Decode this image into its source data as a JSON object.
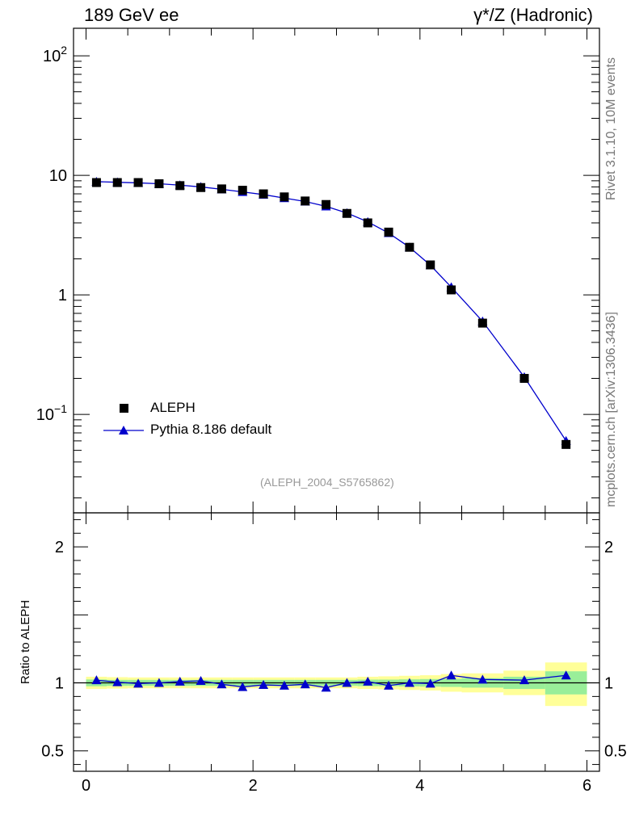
{
  "header": {
    "left_title": "189 GeV ee",
    "right_title": "γ*/Z (Hadronic)"
  },
  "side_labels": {
    "rivet": "Rivet 3.1.10,  10M events",
    "mcplots": "mcplots.cern.ch [arXiv:1306.3436]"
  },
  "analysis_label": "(ALEPH_2004_S5765862)",
  "legend": {
    "data_label": "ALEPH",
    "mc_label": "Pythia 8.186 default"
  },
  "colors": {
    "data": "#000000",
    "mc": "#0000cc",
    "band_inner": "#99ee99",
    "band_outer": "#ffff99"
  },
  "chart_data": [
    {
      "type": "scatter",
      "yscale": "log",
      "ylim": [
        0.015,
        170
      ],
      "xlim": [
        -0.15,
        6.15
      ],
      "ytick_labels": [
        "10^-1",
        "1",
        "10",
        "10^2"
      ],
      "ytick_values": [
        0.1,
        1,
        10,
        100
      ],
      "series": [
        {
          "name": "ALEPH",
          "marker": "square",
          "x": [
            0.125,
            0.375,
            0.625,
            0.875,
            1.125,
            1.375,
            1.625,
            1.875,
            2.125,
            2.375,
            2.625,
            2.875,
            3.125,
            3.375,
            3.625,
            3.875,
            4.125,
            4.375,
            4.75,
            5.25,
            5.75
          ],
          "y": [
            8.7,
            8.7,
            8.7,
            8.5,
            8.2,
            7.9,
            7.7,
            7.5,
            7.0,
            6.6,
            6.1,
            5.7,
            4.8,
            4.0,
            3.35,
            2.5,
            1.78,
            1.1,
            0.58,
            0.2,
            0.056
          ]
        },
        {
          "name": "Pythia 8.186 default",
          "marker": "triangle",
          "x": [
            0.125,
            0.375,
            0.625,
            0.875,
            1.125,
            1.375,
            1.625,
            1.875,
            2.125,
            2.375,
            2.625,
            2.875,
            3.125,
            3.375,
            3.625,
            3.875,
            4.125,
            4.375,
            4.75,
            5.25,
            5.75
          ],
          "y": [
            8.85,
            8.75,
            8.65,
            8.5,
            8.28,
            8.0,
            7.64,
            7.27,
            6.9,
            6.45,
            6.04,
            5.5,
            4.84,
            4.08,
            3.29,
            2.5,
            1.77,
            1.16,
            0.6,
            0.205,
            0.06
          ]
        }
      ]
    },
    {
      "type": "scatter",
      "ylabel": "Ratio to ALEPH",
      "ylim": [
        0.35,
        2.25
      ],
      "xlim": [
        -0.15,
        6.15
      ],
      "xtick_labels": [
        "0",
        "2",
        "4",
        "6"
      ],
      "ytick_labels": [
        "0.5",
        "1",
        "2"
      ],
      "ytick_values": [
        0.5,
        1,
        2
      ],
      "bands": [
        {
          "x0": 0.0,
          "x1": 0.25,
          "inner": [
            0.975,
            1.025
          ],
          "outer": [
            0.955,
            1.045
          ]
        },
        {
          "x0": 0.25,
          "x1": 0.5,
          "inner": [
            0.978,
            1.022
          ],
          "outer": [
            0.958,
            1.042
          ]
        },
        {
          "x0": 0.5,
          "x1": 0.75,
          "inner": [
            0.978,
            1.022
          ],
          "outer": [
            0.96,
            1.04
          ]
        },
        {
          "x0": 0.75,
          "x1": 1.0,
          "inner": [
            0.978,
            1.022
          ],
          "outer": [
            0.96,
            1.04
          ]
        },
        {
          "x0": 1.0,
          "x1": 1.25,
          "inner": [
            0.978,
            1.022
          ],
          "outer": [
            0.96,
            1.04
          ]
        },
        {
          "x0": 1.25,
          "x1": 1.5,
          "inner": [
            0.978,
            1.022
          ],
          "outer": [
            0.96,
            1.04
          ]
        },
        {
          "x0": 1.5,
          "x1": 1.75,
          "inner": [
            0.978,
            1.022
          ],
          "outer": [
            0.96,
            1.04
          ]
        },
        {
          "x0": 1.75,
          "x1": 2.0,
          "inner": [
            0.978,
            1.022
          ],
          "outer": [
            0.96,
            1.04
          ]
        },
        {
          "x0": 2.0,
          "x1": 2.25,
          "inner": [
            0.978,
            1.022
          ],
          "outer": [
            0.96,
            1.04
          ]
        },
        {
          "x0": 2.25,
          "x1": 2.5,
          "inner": [
            0.978,
            1.022
          ],
          "outer": [
            0.96,
            1.04
          ]
        },
        {
          "x0": 2.5,
          "x1": 2.75,
          "inner": [
            0.978,
            1.022
          ],
          "outer": [
            0.96,
            1.04
          ]
        },
        {
          "x0": 2.75,
          "x1": 3.0,
          "inner": [
            0.978,
            1.022
          ],
          "outer": [
            0.96,
            1.04
          ]
        },
        {
          "x0": 3.0,
          "x1": 3.25,
          "inner": [
            0.978,
            1.022
          ],
          "outer": [
            0.96,
            1.04
          ]
        },
        {
          "x0": 3.25,
          "x1": 3.5,
          "inner": [
            0.976,
            1.024
          ],
          "outer": [
            0.955,
            1.045
          ]
        },
        {
          "x0": 3.5,
          "x1": 3.75,
          "inner": [
            0.976,
            1.024
          ],
          "outer": [
            0.952,
            1.048
          ]
        },
        {
          "x0": 3.75,
          "x1": 4.0,
          "inner": [
            0.974,
            1.026
          ],
          "outer": [
            0.948,
            1.052
          ]
        },
        {
          "x0": 4.0,
          "x1": 4.25,
          "inner": [
            0.972,
            1.028
          ],
          "outer": [
            0.944,
            1.056
          ]
        },
        {
          "x0": 4.25,
          "x1": 4.5,
          "inner": [
            0.97,
            1.03
          ],
          "outer": [
            0.935,
            1.065
          ]
        },
        {
          "x0": 4.5,
          "x1": 5.0,
          "inner": [
            0.965,
            1.035
          ],
          "outer": [
            0.93,
            1.07
          ]
        },
        {
          "x0": 5.0,
          "x1": 5.5,
          "inner": [
            0.955,
            1.045
          ],
          "outer": [
            0.91,
            1.09
          ]
        },
        {
          "x0": 5.5,
          "x1": 6.0,
          "inner": [
            0.915,
            1.085
          ],
          "outer": [
            0.83,
            1.15
          ]
        }
      ],
      "series": [
        {
          "name": "Pythia 8.186 default",
          "x": [
            0.125,
            0.375,
            0.625,
            0.875,
            1.125,
            1.375,
            1.625,
            1.875,
            2.125,
            2.375,
            2.625,
            2.875,
            3.125,
            3.375,
            3.625,
            3.875,
            4.125,
            4.375,
            4.75,
            5.25,
            5.75
          ],
          "y": [
            1.02,
            1.005,
            0.995,
            1.0,
            1.01,
            1.015,
            0.99,
            0.97,
            0.985,
            0.98,
            0.99,
            0.965,
            1.0,
            1.01,
            0.98,
            1.0,
            0.995,
            1.055,
            1.025,
            1.02,
            1.055
          ]
        }
      ]
    }
  ]
}
